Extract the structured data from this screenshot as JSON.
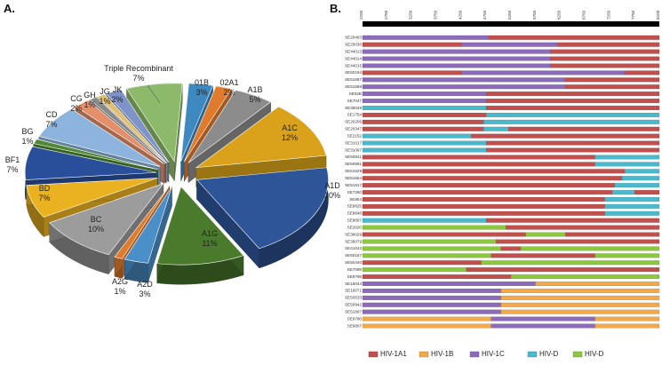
{
  "panels": {
    "a": "A.",
    "b": "B."
  },
  "colors": {
    "A1D": "#2E5597",
    "A1G": "#4A7A2C",
    "A2D": "#4A8FC8",
    "A2G": "#E07B2E",
    "BC": "#9C9C9C",
    "BD": "#EAB220",
    "BF1": "#2A4F9A",
    "BG": "#4E8A33",
    "CD": "#8DB4DC",
    "CG": "#E58F6A",
    "GH": "#8A8A8A",
    "JG": "#E0C070",
    "JK": "#7E93C8",
    "TR": "#8DBA6A",
    "01B": "#3E8AC0",
    "02A1": "#E07B2E",
    "A1B": "#8C8C8C",
    "A1C": "#D9A21A",
    "HIV1A1": "#C0504D",
    "HIV1B": "#F2A94B",
    "HIV1C": "#8C6BB8",
    "HIVD1": "#4BB8CC",
    "HIVD2": "#8DC63F"
  },
  "chart_data": [
    {
      "type": "pie",
      "title": "",
      "slices": [
        {
          "label": "A1D",
          "pct_text": "20%",
          "value": 20,
          "color_key": "A1D"
        },
        {
          "label": "A1G",
          "pct_text": "11%",
          "value": 11,
          "color_key": "A1G"
        },
        {
          "label": "A2D",
          "pct_text": "3%",
          "value": 3,
          "color_key": "A2D"
        },
        {
          "label": "A2G",
          "pct_text": "1%",
          "value": 1,
          "color_key": "A2G"
        },
        {
          "label": "BC",
          "pct_text": "10%",
          "value": 10,
          "color_key": "BC"
        },
        {
          "label": "BD",
          "pct_text": "7%",
          "value": 7,
          "color_key": "BD"
        },
        {
          "label": "BF1",
          "pct_text": "7%",
          "value": 7,
          "color_key": "BF1"
        },
        {
          "label": "BG",
          "pct_text": "1%",
          "value": 1,
          "color_key": "BG"
        },
        {
          "label": "CD",
          "pct_text": "7%",
          "value": 7,
          "color_key": "CD"
        },
        {
          "label": "CG",
          "pct_text": "2%",
          "value": 2,
          "color_key": "CG"
        },
        {
          "label": "GH",
          "pct_text": "1%",
          "value": 1,
          "color_key": "GH"
        },
        {
          "label": "JG",
          "pct_text": "1%",
          "value": 1,
          "color_key": "JG"
        },
        {
          "label": "JK",
          "pct_text": "2%",
          "value": 2,
          "color_key": "JK"
        },
        {
          "label": "Triple Recombinant",
          "pct_text": "7%",
          "value": 7,
          "color_key": "TR"
        },
        {
          "label": "01B",
          "pct_text": "3%",
          "value": 3,
          "color_key": "01B"
        },
        {
          "label": "02A1",
          "pct_text": "2%",
          "value": 2,
          "color_key": "02A1"
        },
        {
          "label": "A1B",
          "pct_text": "5%",
          "value": 5,
          "color_key": "A1B"
        },
        {
          "label": "A1C",
          "pct_text": "12%",
          "value": 12,
          "color_key": "A1C"
        }
      ]
    },
    {
      "type": "bar",
      "title": "",
      "orientation": "horizontal-segmented",
      "xlim": [
        2200,
        8200
      ],
      "position_ticks": [
        "2250",
        "2750",
        "3250",
        "3750",
        "4250",
        "4750",
        "5250",
        "5750",
        "6250",
        "6750",
        "7250",
        "7750",
        "8200"
      ],
      "legend": [
        {
          "label": "HIV-1A1",
          "color_key": "HIV1A1"
        },
        {
          "label": "HIV-1B",
          "color_key": "HIV1B"
        },
        {
          "label": "HIV-1C",
          "color_key": "HIV1C"
        },
        {
          "label": "HIV-D",
          "color_key": "HIVD1"
        },
        {
          "label": "HIV-D",
          "color_key": "HIVD2"
        }
      ],
      "rows": [
        {
          "name": "SE20493",
          "segments": [
            [
              "HIV1C",
              2200,
              4750
            ],
            [
              "HIV1A1",
              4750,
              8200
            ]
          ]
        },
        {
          "name": "SE25030",
          "segments": [
            [
              "HIV1A1",
              2200,
              4200
            ],
            [
              "HIV1C",
              4200,
              6150
            ],
            [
              "HIV1A1",
              6150,
              8200
            ]
          ]
        },
        {
          "name": "SE44013",
          "segments": [
            [
              "HIV1C",
              2200,
              6000
            ],
            [
              "HIV1A1",
              6000,
              8200
            ]
          ]
        },
        {
          "name": "SE44014",
          "segments": [
            [
              "HIV1C",
              2200,
              6000
            ],
            [
              "HIV1A1",
              6000,
              8200
            ]
          ]
        },
        {
          "name": "SE44015",
          "segments": [
            [
              "HIV1C",
              2200,
              6000
            ],
            [
              "HIV1A1",
              6000,
              8200
            ]
          ]
        },
        {
          "name": "SE50194",
          "segments": [
            [
              "HIV1A1",
              2200,
              4200
            ],
            [
              "HIV1C",
              4200,
              7500
            ],
            [
              "HIV1A1",
              7500,
              8200
            ]
          ]
        },
        {
          "name": "SE51587",
          "segments": [
            [
              "HIV1C",
              2200,
              6300
            ],
            [
              "HIV1A1",
              6300,
              8200
            ]
          ]
        },
        {
          "name": "SE51588",
          "segments": [
            [
              "HIV1C",
              2200,
              6300
            ],
            [
              "HIV1A1",
              6300,
              8200
            ]
          ]
        },
        {
          "name": "SE52B",
          "segments": [
            [
              "HIV1C",
              2200,
              4700
            ],
            [
              "HIV1A1",
              4700,
              8200
            ]
          ]
        },
        {
          "name": "SE7047",
          "segments": [
            [
              "HIV1C",
              2200,
              4700
            ],
            [
              "HIV1A1",
              4700,
              8200
            ]
          ]
        },
        {
          "name": "SE36048",
          "segments": [
            [
              "HIVD1",
              2200,
              4700
            ],
            [
              "HIV1A1",
              4700,
              8200
            ]
          ]
        },
        {
          "name": "SE1754",
          "segments": [
            [
              "HIV1A1",
              2200,
              4700
            ],
            [
              "HIVD1",
              4700,
              8200
            ]
          ]
        },
        {
          "name": "SE20206",
          "segments": [
            [
              "HIV1A1",
              2200,
              4650
            ],
            [
              "HIVD1",
              4650,
              8200
            ]
          ]
        },
        {
          "name": "SE20347",
          "segments": [
            [
              "HIV1A1",
              2200,
              4650
            ],
            [
              "HIVD1",
              4650,
              5150
            ],
            [
              "HIV1A1",
              5150,
              8200
            ]
          ]
        },
        {
          "name": "SE2152",
          "segments": [
            [
              "HIVD1",
              2200,
              4400
            ],
            [
              "HIV1A1",
              4400,
              8200
            ]
          ]
        },
        {
          "name": "SE31017",
          "segments": [
            [
              "HIVD1",
              2200,
              4700
            ],
            [
              "HIV1A1",
              4700,
              8200
            ]
          ]
        },
        {
          "name": "SE31087",
          "segments": [
            [
              "HIVD1",
              2200,
              4700
            ],
            [
              "HIV1A1",
              4700,
              8200
            ]
          ]
        },
        {
          "name": "SE50841",
          "segments": [
            [
              "HIV1A1",
              2200,
              6900
            ],
            [
              "HIVD1",
              6900,
              8200
            ]
          ]
        },
        {
          "name": "SE50961",
          "segments": [
            [
              "HIV1A1",
              2200,
              6900
            ],
            [
              "HIVD1",
              6900,
              8200
            ]
          ]
        },
        {
          "name": "SE51529",
          "segments": [
            [
              "HIV1A1",
              2200,
              7500
            ],
            [
              "HIVD1",
              7500,
              8200
            ]
          ]
        },
        {
          "name": "SE51554",
          "segments": [
            [
              "HIV1A1",
              2200,
              7450
            ],
            [
              "HIVD1",
              7450,
              8200
            ]
          ]
        },
        {
          "name": "SE51917",
          "segments": [
            [
              "HIV1A1",
              2200,
              7300
            ],
            [
              "HIVD1",
              7300,
              8200
            ]
          ]
        },
        {
          "name": "SE7260",
          "segments": [
            [
              "HIV1A1",
              2200,
              7250
            ],
            [
              "HIVD1",
              7250,
              7700
            ],
            [
              "HIV1A1",
              7700,
              8200
            ]
          ]
        },
        {
          "name": "SE854",
          "segments": [
            [
              "HIV1A1",
              2200,
              7100
            ],
            [
              "HIVD1",
              7100,
              8200
            ]
          ]
        },
        {
          "name": "SE9825",
          "segments": [
            [
              "HIV1A1",
              2200,
              7100
            ],
            [
              "HIVD1",
              7100,
              8200
            ]
          ]
        },
        {
          "name": "SE9848",
          "segments": [
            [
              "HIV1A1",
              2200,
              7100
            ],
            [
              "HIVD1",
              7100,
              8200
            ]
          ]
        },
        {
          "name": "SE9897",
          "segments": [
            [
              "HIVD1",
              2200,
              4700
            ],
            [
              "HIV1A1",
              4700,
              8200
            ]
          ]
        },
        {
          "name": "SE2620",
          "segments": [
            [
              "HIVD2",
              2200,
              5100
            ],
            [
              "HIV1A1",
              5100,
              8200
            ]
          ]
        },
        {
          "name": "SE36029",
          "segments": [
            [
              "HIV1A1",
              2200,
              5500
            ],
            [
              "HIVD2",
              5500,
              6300
            ],
            [
              "HIV1A1",
              6300,
              8200
            ]
          ]
        },
        {
          "name": "SE36079",
          "segments": [
            [
              "HIVD2",
              2200,
              4900
            ],
            [
              "HIV1A1",
              4900,
              8200
            ]
          ]
        },
        {
          "name": "SE41043",
          "segments": [
            [
              "HIVD2",
              2200,
              5000
            ],
            [
              "HIV1A1",
              5000,
              5400
            ],
            [
              "HIVD2",
              5400,
              8200
            ]
          ]
        },
        {
          "name": "SE50167",
          "segments": [
            [
              "HIVD2",
              2200,
              4800
            ],
            [
              "HIV1A1",
              4800,
              6900
            ],
            [
              "HIVD2",
              6900,
              8200
            ]
          ]
        },
        {
          "name": "SE50440",
          "segments": [
            [
              "HIV1A1",
              2200,
              4600
            ],
            [
              "HIVD2",
              4600,
              8200
            ]
          ]
        },
        {
          "name": "SE7098",
          "segments": [
            [
              "HIVD2",
              2200,
              4300
            ],
            [
              "HIV1A1",
              4300,
              8200
            ]
          ]
        },
        {
          "name": "SE9798",
          "segments": [
            [
              "HIV1A1",
              2200,
              5200
            ],
            [
              "HIVD2",
              5200,
              8200
            ]
          ]
        },
        {
          "name": "SE16044",
          "segments": [
            [
              "HIV1C",
              2200,
              5700
            ],
            [
              "HIV1B",
              5700,
              8200
            ]
          ]
        },
        {
          "name": "SE16071",
          "segments": [
            [
              "HIV1C",
              2200,
              5000
            ],
            [
              "HIV1B",
              5000,
              8200
            ]
          ]
        },
        {
          "name": "SE50533",
          "segments": [
            [
              "HIV1C",
              2200,
              5000
            ],
            [
              "HIV1B",
              5000,
              8200
            ]
          ]
        },
        {
          "name": "SE50942",
          "segments": [
            [
              "HIV1C",
              2200,
              5000
            ],
            [
              "HIV1B",
              5000,
              8200
            ]
          ]
        },
        {
          "name": "SE51897",
          "segments": [
            [
              "HIV1C",
              2200,
              5000
            ],
            [
              "HIV1B",
              5000,
              8200
            ]
          ]
        },
        {
          "name": "SE9780",
          "segments": [
            [
              "HIV1B",
              2200,
              4800
            ],
            [
              "HIV1C",
              4800,
              6900
            ],
            [
              "HIV1B",
              6900,
              8200
            ]
          ]
        },
        {
          "name": "SE9807",
          "segments": [
            [
              "HIV1B",
              2200,
              4800
            ],
            [
              "HIV1C",
              4800,
              6900
            ],
            [
              "HIV1B",
              6900,
              8200
            ]
          ]
        }
      ]
    }
  ]
}
